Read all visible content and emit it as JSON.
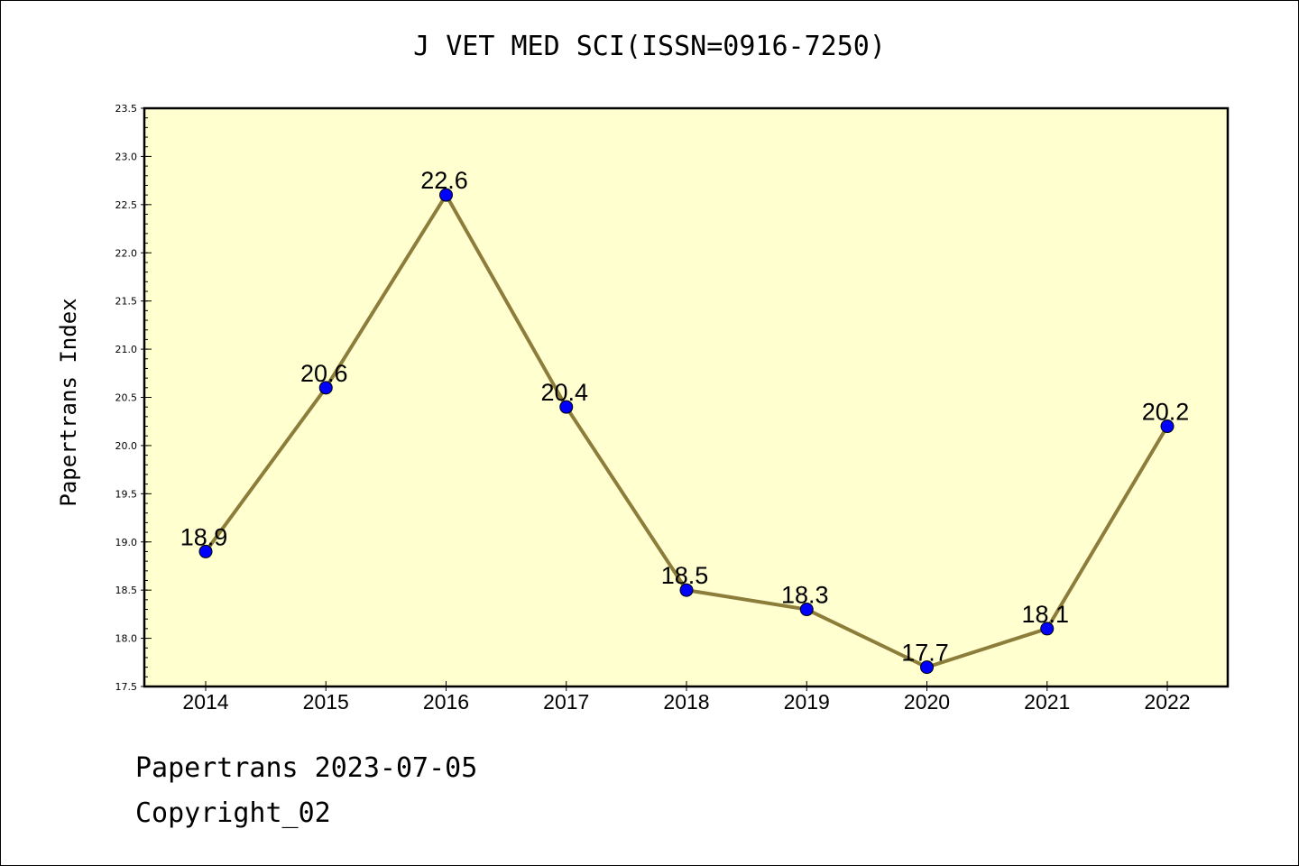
{
  "chart_data": {
    "type": "line",
    "title": "J VET MED SCI(ISSN=0916-7250)",
    "xlabel": "",
    "ylabel": "Papertrans Index",
    "categories": [
      "2014",
      "2015",
      "2016",
      "2017",
      "2018",
      "2019",
      "2020",
      "2021",
      "2022"
    ],
    "series": [
      {
        "values": [
          18.9,
          20.6,
          22.6,
          20.4,
          18.5,
          18.3,
          17.7,
          18.1,
          20.2
        ],
        "labels": [
          "18.9",
          "20.6",
          "22.6",
          "20.4",
          "18.5",
          "18.3",
          "17.7",
          "18.1",
          "20.2"
        ]
      }
    ],
    "ylim": [
      17.5,
      23.5
    ],
    "yticks": [
      "17.5",
      "18.0",
      "18.5",
      "19.0",
      "19.5",
      "20.0",
      "20.5",
      "21.0",
      "21.5",
      "22.0",
      "22.5",
      "23.0",
      "23.5"
    ],
    "grid": false,
    "legend": "none",
    "colors": {
      "plot_background": "#ffffd0",
      "line": "#8c7d3a",
      "marker": "#0000ff"
    }
  },
  "footer": {
    "line1": "Papertrans 2023-07-05",
    "line2": "Copyright_02"
  }
}
